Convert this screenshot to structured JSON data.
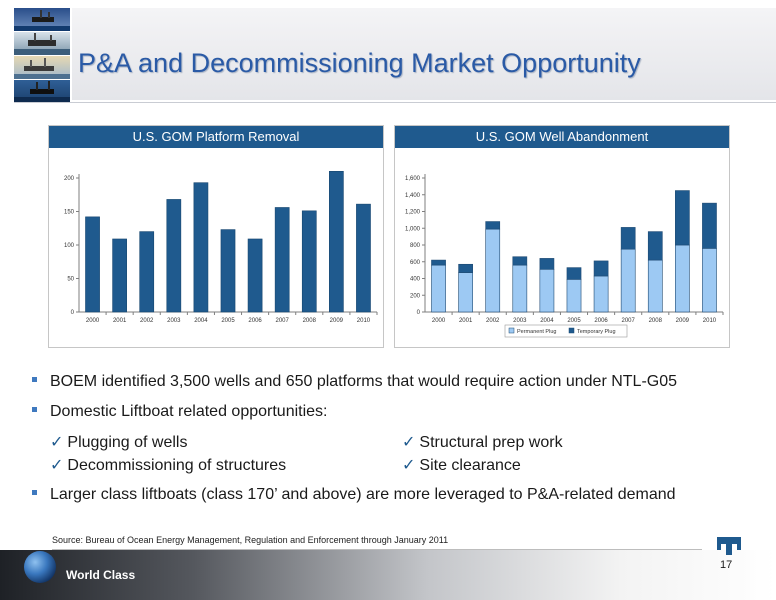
{
  "slide": {
    "title": "P&A and Decommissioning Market Opportunity",
    "page_number": "17",
    "footer_text": "World Class",
    "source": "Source: Bureau of Ocean Energy Management, Regulation and Enforcement through January 2011"
  },
  "bullets": [
    "BOEM identified 3,500 wells and 650 platforms that would require action under NTL-G05",
    "Domestic Liftboat related opportunities:",
    "Larger class liftboats (class 170’ and above) are more leveraged to P&A-related demand"
  ],
  "checklist": [
    "Plugging of wells",
    "Decommissioning of structures",
    "Structural prep work",
    "Site clearance"
  ],
  "colors": {
    "title": "#2a5aa6",
    "header_bar": "#1f5a8e",
    "bar_dark": "#1f5a8e",
    "bar_light": "#9dc9f3",
    "bullet": "#3f79bf"
  },
  "chart_data": [
    {
      "type": "bar",
      "title": "U.S. GOM Platform Removal",
      "categories": [
        "2000",
        "2001",
        "2002",
        "2003",
        "2004",
        "2005",
        "2006",
        "2007",
        "2008",
        "2009",
        "2010"
      ],
      "values": [
        142,
        109,
        120,
        168,
        193,
        123,
        109,
        156,
        151,
        210,
        161
      ],
      "ylim": [
        0,
        200
      ],
      "yticks": [
        "0",
        "50",
        "100",
        "150",
        "200"
      ],
      "grid": false,
      "legend": "none"
    },
    {
      "type": "bar",
      "stacked": true,
      "title": "U.S. GOM Well Abandonment",
      "categories": [
        "2000",
        "2001",
        "2002",
        "2003",
        "2004",
        "2005",
        "2006",
        "2007",
        "2008",
        "2009",
        "2010"
      ],
      "series": [
        {
          "name": "Permanent Plug",
          "color": "#9dc9f3",
          "values": [
            560,
            470,
            990,
            560,
            510,
            390,
            430,
            750,
            620,
            800,
            760
          ]
        },
        {
          "name": "Temporary Plug",
          "color": "#1f5a8e",
          "values": [
            60,
            100,
            90,
            100,
            130,
            140,
            180,
            260,
            340,
            650,
            540
          ]
        }
      ],
      "ylim": [
        0,
        1600
      ],
      "yticks": [
        "0",
        "200",
        "400",
        "600",
        "800",
        "1,000",
        "1,200",
        "1,400",
        "1,600"
      ],
      "grid": false,
      "legend": "bottom"
    }
  ]
}
